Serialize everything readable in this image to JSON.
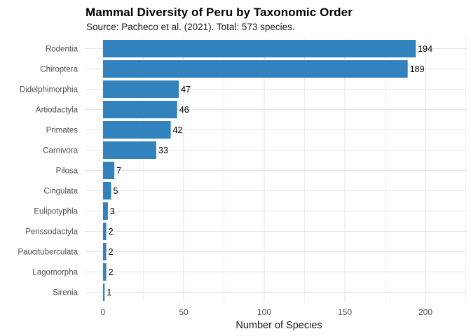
{
  "title": "Mammal Diversity of Peru by Taxonomic Order",
  "subtitle": "Source: Pacheco et al. (2021). Total: 573 species.",
  "chart_data": {
    "type": "bar",
    "orientation": "horizontal",
    "title": "Mammal Diversity of Peru by Taxonomic Order",
    "subtitle": "Source: Pacheco et al. (2021). Total: 573 species.",
    "categories": [
      "Rodentia",
      "Chiroptera",
      "Didelphimorphia",
      "Artiodactyla",
      "Primates",
      "Carnivora",
      "Pilosa",
      "Cingulata",
      "Eulipotyphla",
      "Perissodactyla",
      "Paucituberculata",
      "Lagomorpha",
      "Sirenia"
    ],
    "values": [
      194,
      189,
      47,
      46,
      42,
      33,
      7,
      5,
      3,
      2,
      2,
      2,
      1
    ],
    "value_labels": [
      "194",
      "189",
      "47",
      "46",
      "42",
      "33",
      "7",
      "5",
      "3",
      "2",
      "2",
      "2",
      "1"
    ],
    "xlabel": "Number of Species",
    "ylabel": "",
    "x_ticks": [
      0,
      50,
      100,
      150,
      200
    ],
    "x_minor_ticks": [
      25,
      75,
      125,
      175,
      225
    ],
    "xlim": [
      -11,
      225
    ],
    "grid": true,
    "legend": false,
    "colors": {
      "bar": "#3182bd",
      "grid_major": "#e3e3e3",
      "grid_minor": "#efefef",
      "axis_text": "#4d4d4d",
      "value_label": "#000000",
      "axis_title": "#1a1a1a",
      "background": "#ffffff"
    }
  }
}
